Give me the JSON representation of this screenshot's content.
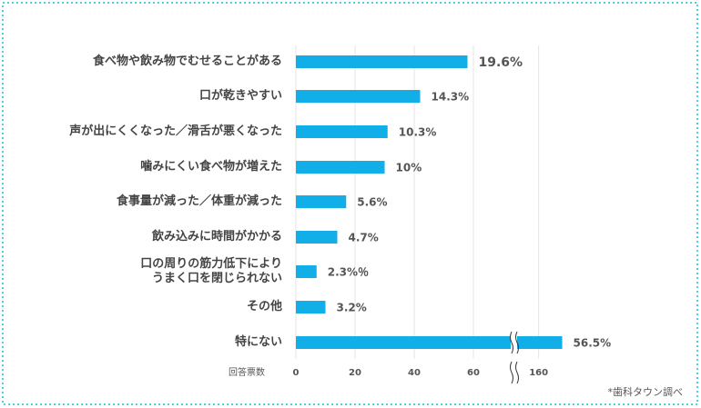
{
  "chart_data": {
    "type": "bar",
    "orientation": "horizontal",
    "categories": [
      "食べ物や飲み物でむせることがある",
      "口が乾きやすい",
      "声が出にくくなった／滑舌が悪くなった",
      "噛みにくい食べ物が増えた",
      "食事量が減った／体重が減った",
      "飲み込みに時間がかかる",
      "口の周りの筋力低下により\nうまく口を閉じられない",
      "その他",
      "特にない"
    ],
    "values": [
      58,
      42,
      31,
      30,
      17,
      14,
      7,
      10,
      168
    ],
    "percent_labels": [
      "19.6%",
      "14.3%",
      "10.3%",
      "10%",
      "5.6%",
      "4.7%",
      "2.3%％",
      "3.2%",
      "56.5%"
    ],
    "highlight_color": "#e8202a",
    "color": "#12aee8",
    "x_label": "回答票数",
    "xlim": [
      0,
      170
    ],
    "x_break": [
      72,
      153
    ],
    "xticks": [
      0,
      20,
      40,
      60,
      160
    ],
    "grid": true,
    "note": "*歯科タウン調べ"
  }
}
